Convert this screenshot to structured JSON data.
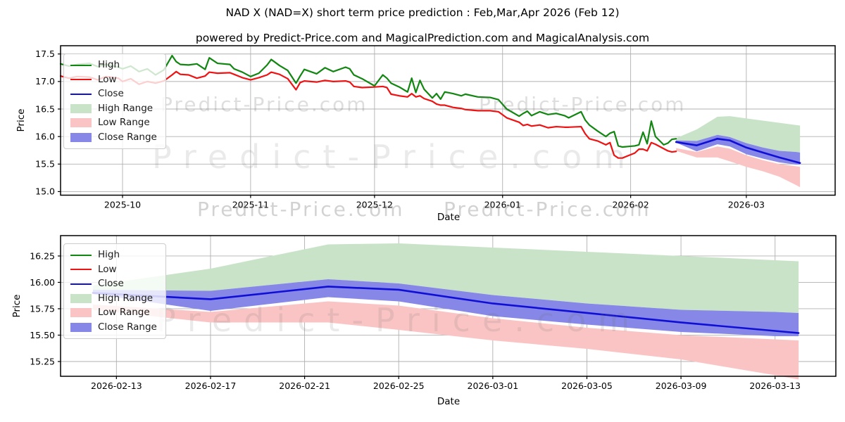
{
  "title": "NAD X (NAD=X) short term price prediction : Feb,Mar,Apr 2026 (Feb 12)",
  "subtitle": "powered by Predict-Price.com and MagicalPrediction.com and MagicalAnalysis.com",
  "watermark_text": "Predict-Price.com",
  "colors": {
    "high_line": "#118611",
    "low_line": "#ee1312",
    "close_line": "#0f0fd6",
    "high_band": "#c8e3c8",
    "low_band": "#fbc4c4",
    "close_band": "#8787e8",
    "grid": "#b0b0b0",
    "spine": "#000000",
    "watermark": "#6e6e6e"
  },
  "legend_items": [
    {
      "label": "High",
      "type": "line",
      "color": "#118611"
    },
    {
      "label": "Low",
      "type": "line",
      "color": "#ee1312"
    },
    {
      "label": "Close",
      "type": "line",
      "color": "#0f0fd6"
    },
    {
      "label": "High Range",
      "type": "patch",
      "color": "#c8e3c8"
    },
    {
      "label": "Low Range",
      "type": "patch",
      "color": "#fbc4c4"
    },
    {
      "label": "Close Range",
      "type": "patch",
      "color": "#8787e8"
    }
  ],
  "chart_data": [
    {
      "name": "price-history-with-forecast",
      "type": "line",
      "xlabel": "Date",
      "ylabel": "Price",
      "xlim": [
        "2025-09-16",
        "2026-03-22T12:00:00"
      ],
      "ylim": [
        14.935,
        17.65
      ],
      "grid": true,
      "legend_location": "upper left",
      "x_ticks": [
        {
          "date": "2025-10-01",
          "label": "2025-10"
        },
        {
          "date": "2025-11-01",
          "label": "2025-11"
        },
        {
          "date": "2025-12-01",
          "label": "2025-12"
        },
        {
          "date": "2026-01-01",
          "label": "2026-01"
        },
        {
          "date": "2026-02-01",
          "label": "2026-02"
        },
        {
          "date": "2026-03-01",
          "label": "2026-03"
        }
      ],
      "y_ticks": [
        {
          "v": 15.0,
          "label": "15.0"
        },
        {
          "v": 15.5,
          "label": "15.5"
        },
        {
          "v": 16.0,
          "label": "16.0"
        },
        {
          "v": 16.5,
          "label": "16.5"
        },
        {
          "v": 17.0,
          "label": "17.0"
        },
        {
          "v": 17.5,
          "label": "17.5"
        }
      ],
      "series": {
        "dates": [
          "2025-09-16",
          "2025-09-18",
          "2025-09-20",
          "2025-09-23",
          "2025-09-25",
          "2025-09-27",
          "2025-09-30",
          "2025-10-01",
          "2025-10-03",
          "2025-10-05",
          "2025-10-07",
          "2025-10-09",
          "2025-10-11",
          "2025-10-13",
          "2025-10-14",
          "2025-10-15",
          "2025-10-17",
          "2025-10-19",
          "2025-10-21",
          "2025-10-22",
          "2025-10-24",
          "2025-10-27",
          "2025-10-28",
          "2025-10-30",
          "2025-11-01",
          "2025-11-03",
          "2025-11-05",
          "2025-11-06",
          "2025-11-08",
          "2025-11-10",
          "2025-11-12",
          "2025-11-13",
          "2025-11-14",
          "2025-11-17",
          "2025-11-19",
          "2025-11-21",
          "2025-11-24",
          "2025-11-25",
          "2025-11-26",
          "2025-11-28",
          "2025-12-01",
          "2025-12-03",
          "2025-12-04",
          "2025-12-05",
          "2025-12-07",
          "2025-12-09",
          "2025-12-10",
          "2025-12-11",
          "2025-12-12",
          "2025-12-13",
          "2025-12-15",
          "2025-12-16",
          "2025-12-17",
          "2025-12-18",
          "2025-12-20",
          "2025-12-22",
          "2025-12-23",
          "2025-12-26",
          "2025-12-29",
          "2025-12-31",
          "2026-01-02",
          "2026-01-05",
          "2026-01-06",
          "2026-01-07",
          "2026-01-08",
          "2026-01-10",
          "2026-01-12",
          "2026-01-14",
          "2026-01-16",
          "2026-01-17",
          "2026-01-20",
          "2026-01-21",
          "2026-01-22",
          "2026-01-24",
          "2026-01-26",
          "2026-01-27",
          "2026-01-28",
          "2026-01-29",
          "2026-01-30",
          "2026-02-02",
          "2026-02-03",
          "2026-02-04",
          "2026-02-05",
          "2026-02-06",
          "2026-02-07",
          "2026-02-09",
          "2026-02-10",
          "2026-02-11",
          "2026-02-12"
        ],
        "high": [
          17.32,
          17.28,
          17.31,
          17.33,
          17.27,
          17.31,
          17.26,
          17.23,
          17.28,
          17.18,
          17.23,
          17.12,
          17.21,
          17.47,
          17.36,
          17.31,
          17.3,
          17.32,
          17.22,
          17.43,
          17.33,
          17.31,
          17.23,
          17.17,
          17.09,
          17.15,
          17.3,
          17.4,
          17.29,
          17.2,
          16.97,
          17.1,
          17.22,
          17.14,
          17.25,
          17.18,
          17.26,
          17.23,
          17.12,
          17.05,
          16.92,
          17.12,
          17.06,
          16.97,
          16.9,
          16.81,
          17.06,
          16.8,
          17.02,
          16.86,
          16.7,
          16.78,
          16.68,
          16.81,
          16.78,
          16.74,
          16.77,
          16.72,
          16.71,
          16.67,
          16.5,
          16.37,
          16.42,
          16.46,
          16.38,
          16.45,
          16.4,
          16.42,
          16.38,
          16.34,
          16.45,
          16.3,
          16.21,
          16.1,
          16.0,
          16.06,
          16.09,
          15.83,
          15.81,
          15.83,
          15.85,
          16.08,
          15.87,
          16.28,
          16.0,
          15.85,
          15.88,
          15.95,
          15.96
        ],
        "low": [
          17.1,
          17.06,
          17.09,
          17.08,
          17.03,
          17.09,
          17.06,
          17.0,
          17.05,
          16.95,
          17.0,
          16.97,
          17.01,
          17.12,
          17.18,
          17.13,
          17.12,
          17.06,
          17.1,
          17.17,
          17.15,
          17.16,
          17.13,
          17.07,
          17.03,
          17.07,
          17.12,
          17.17,
          17.13,
          17.05,
          16.85,
          16.98,
          17.01,
          16.99,
          17.02,
          17.0,
          17.01,
          16.99,
          16.91,
          16.89,
          16.9,
          16.91,
          16.89,
          16.77,
          16.74,
          16.72,
          16.78,
          16.72,
          16.74,
          16.69,
          16.64,
          16.59,
          16.57,
          16.57,
          16.53,
          16.51,
          16.49,
          16.47,
          16.47,
          16.45,
          16.34,
          16.26,
          16.2,
          16.22,
          16.19,
          16.21,
          16.16,
          16.18,
          16.17,
          16.17,
          16.18,
          16.05,
          15.96,
          15.92,
          15.85,
          15.89,
          15.66,
          15.61,
          15.61,
          15.7,
          15.77,
          15.77,
          15.74,
          15.89,
          15.86,
          15.78,
          15.74,
          15.72,
          15.73
        ]
      },
      "prediction": {
        "dates": [
          "2026-02-12",
          "2026-02-17",
          "2026-02-22",
          "2026-02-25",
          "2026-03-01",
          "2026-03-05",
          "2026-03-09",
          "2026-03-13",
          "2026-03-14"
        ],
        "close": [
          15.9,
          15.84,
          15.96,
          15.93,
          15.8,
          15.71,
          15.62,
          15.54,
          15.52
        ],
        "close_hi": [
          15.93,
          15.92,
          16.03,
          15.99,
          15.88,
          15.8,
          15.74,
          15.72,
          15.71
        ],
        "close_lo": [
          15.89,
          15.73,
          15.86,
          15.82,
          15.68,
          15.6,
          15.53,
          15.49,
          15.49
        ],
        "high_hi": [
          15.97,
          16.13,
          16.36,
          16.37,
          16.33,
          16.29,
          16.25,
          16.21,
          16.2
        ],
        "high_lo": [
          15.93,
          15.92,
          16.03,
          15.99,
          15.88,
          15.8,
          15.74,
          15.72,
          15.71
        ],
        "low_hi": [
          15.79,
          15.72,
          15.82,
          15.78,
          15.66,
          15.57,
          15.5,
          15.46,
          15.45
        ],
        "low_lo": [
          15.74,
          15.62,
          15.62,
          15.55,
          15.45,
          15.37,
          15.27,
          15.12,
          15.08
        ]
      }
    },
    {
      "name": "forecast-zoom",
      "type": "line",
      "xlabel": "Date",
      "ylabel": "Price",
      "xlim": [
        "2026-02-10T15:00:00",
        "2026-03-15T14:00:00"
      ],
      "ylim": [
        15.11,
        16.443
      ],
      "grid": true,
      "legend_location": "upper left",
      "x_ticks": [
        {
          "date": "2026-02-13",
          "label": "2026-02-13"
        },
        {
          "date": "2026-02-17",
          "label": "2026-02-17"
        },
        {
          "date": "2026-02-21",
          "label": "2026-02-21"
        },
        {
          "date": "2026-02-25",
          "label": "2026-02-25"
        },
        {
          "date": "2026-03-01",
          "label": "2026-03-01"
        },
        {
          "date": "2026-03-05",
          "label": "2026-03-05"
        },
        {
          "date": "2026-03-09",
          "label": "2026-03-09"
        },
        {
          "date": "2026-03-13",
          "label": "2026-03-13"
        }
      ],
      "y_ticks": [
        {
          "v": 15.25,
          "label": "15.25"
        },
        {
          "v": 15.5,
          "label": "15.50"
        },
        {
          "v": 15.75,
          "label": "15.75"
        },
        {
          "v": 16.0,
          "label": "16.00"
        },
        {
          "v": 16.25,
          "label": "16.25"
        }
      ],
      "prediction": {
        "dates": [
          "2026-02-12",
          "2026-02-17",
          "2026-02-22",
          "2026-02-25",
          "2026-03-01",
          "2026-03-05",
          "2026-03-09",
          "2026-03-13",
          "2026-03-14"
        ],
        "close": [
          15.9,
          15.84,
          15.96,
          15.93,
          15.8,
          15.71,
          15.62,
          15.54,
          15.52
        ],
        "close_hi": [
          15.93,
          15.92,
          16.03,
          15.99,
          15.88,
          15.8,
          15.74,
          15.72,
          15.71
        ],
        "close_lo": [
          15.89,
          15.73,
          15.86,
          15.82,
          15.68,
          15.6,
          15.53,
          15.49,
          15.49
        ],
        "high_hi": [
          15.97,
          16.13,
          16.36,
          16.37,
          16.33,
          16.29,
          16.25,
          16.21,
          16.2
        ],
        "high_lo": [
          15.93,
          15.92,
          16.03,
          15.99,
          15.88,
          15.8,
          15.74,
          15.72,
          15.71
        ],
        "low_hi": [
          15.79,
          15.72,
          15.82,
          15.78,
          15.66,
          15.57,
          15.5,
          15.46,
          15.45
        ],
        "low_lo": [
          15.74,
          15.62,
          15.62,
          15.55,
          15.45,
          15.37,
          15.27,
          15.12,
          15.08
        ]
      }
    }
  ]
}
